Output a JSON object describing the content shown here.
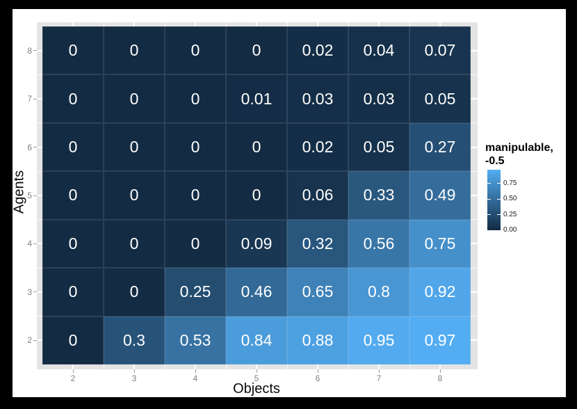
{
  "frame": {
    "background_color": "#000000",
    "canvas_color": "#ffffff",
    "panel_color": "#e4e4e4",
    "gridline_color": "#ffffff",
    "tick_color": "#9a9a9a",
    "tick_label_color": "#7f7f7f",
    "cell_label_color": "#ffffff"
  },
  "chart_data": {
    "type": "heatmap",
    "title": "",
    "xlabel": "Objects",
    "ylabel": "Agents",
    "x": [
      "2",
      "3",
      "4",
      "5",
      "6",
      "7",
      "8"
    ],
    "y_top_to_bottom": [
      "8",
      "7",
      "6",
      "5",
      "4",
      "3",
      "2"
    ],
    "values_by_row_top_to_bottom": [
      [
        0,
        0,
        0,
        0,
        0.02,
        0.04,
        0.07
      ],
      [
        0,
        0,
        0,
        0.01,
        0.03,
        0.03,
        0.05
      ],
      [
        0,
        0,
        0,
        0,
        0.02,
        0.05,
        0.27
      ],
      [
        0,
        0,
        0,
        0,
        0.06,
        0.33,
        0.49
      ],
      [
        0,
        0,
        0,
        0.09,
        0.32,
        0.56,
        0.75
      ],
      [
        0,
        0,
        0.25,
        0.46,
        0.65,
        0.8,
        0.92
      ],
      [
        0,
        0.3,
        0.53,
        0.84,
        0.88,
        0.95,
        0.97
      ]
    ],
    "labels_by_row_top_to_bottom": [
      [
        "0",
        "0",
        "0",
        "0",
        "0.02",
        "0.04",
        "0.07"
      ],
      [
        "0",
        "0",
        "0",
        "0.01",
        "0.03",
        "0.03",
        "0.05"
      ],
      [
        "0",
        "0",
        "0",
        "0",
        "0.02",
        "0.05",
        "0.27"
      ],
      [
        "0",
        "0",
        "0",
        "0",
        "0.06",
        "0.33",
        "0.49"
      ],
      [
        "0",
        "0",
        "0",
        "0.09",
        "0.32",
        "0.56",
        "0.75"
      ],
      [
        "0",
        "0",
        "0.25",
        "0.46",
        "0.65",
        "0.8",
        "0.92"
      ],
      [
        "0",
        "0.3",
        "0.53",
        "0.84",
        "0.88",
        "0.95",
        "0.97"
      ]
    ],
    "color_scale": {
      "low": "#132B43",
      "high": "#56B1F7",
      "domain": [
        0,
        1
      ],
      "bar_max": 0.97
    },
    "legend": {
      "position": "right",
      "title_lines": [
        "manipulable,",
        "-0.5"
      ],
      "tick_labels": [
        "0.75",
        "0.50",
        "0.25",
        "0.00"
      ],
      "tick_values": [
        0.75,
        0.5,
        0.25,
        0
      ]
    },
    "grid": "white major gridlines at integer breaks, minor at half-breaks (visible at panel margins)",
    "axis_ranges": {
      "x": [
        1.5,
        8.5
      ],
      "y": [
        1.5,
        8.5
      ]
    }
  }
}
